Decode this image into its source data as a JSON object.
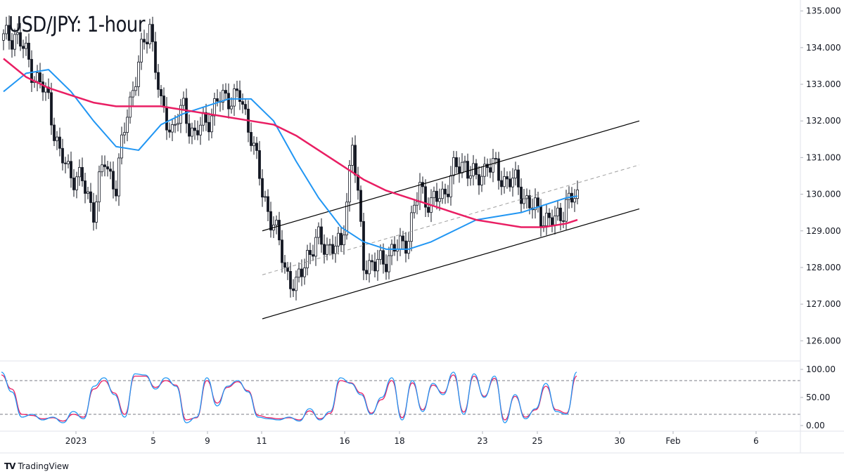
{
  "title": "USD/JPY: 1-hour",
  "branding": {
    "logo": "TV",
    "name": "TradingView"
  },
  "colors": {
    "candle": "#131722",
    "ma_fast": "#2196f3",
    "ma_slow": "#e91e63",
    "stoch_k": "#2196f3",
    "stoch_d": "#e91e63",
    "channel": "#000000",
    "midline": "#9e9e9e",
    "grid": "#e0e3eb"
  },
  "chart_data": {
    "type": "line",
    "title": "USD/JPY: 1-hour",
    "price_axis": {
      "ticks": [
        "135.000",
        "134.000",
        "133.000",
        "132.000",
        "131.000",
        "130.000",
        "129.000",
        "128.000",
        "127.000",
        "126.000"
      ],
      "ylim": [
        125.45,
        135.3
      ]
    },
    "time_axis": {
      "ticks": [
        "2023",
        "5",
        "9",
        "11",
        "16",
        "18",
        "23",
        "25",
        "30",
        "Feb",
        "6"
      ]
    },
    "price_series": {
      "name": "USD/JPY",
      "x": [
        0,
        4,
        8,
        12,
        16,
        20,
        24,
        28,
        32,
        36,
        40,
        44,
        48,
        52,
        56,
        60,
        64,
        68,
        72,
        76,
        80,
        84,
        88,
        92,
        96,
        100,
        104,
        108,
        112,
        116,
        120,
        124,
        128,
        132,
        136,
        140,
        144,
        148,
        152,
        156,
        160,
        164,
        168,
        172,
        176,
        180,
        184,
        188,
        192,
        196,
        200,
        204
      ],
      "close": [
        134.2,
        134.4,
        133.8,
        133.1,
        132.6,
        131.0,
        130.6,
        130.3,
        129.6,
        130.9,
        130.2,
        132.3,
        133.5,
        134.7,
        132.3,
        131.8,
        132.3,
        131.6,
        132.0,
        132.5,
        132.7,
        132.6,
        131.7,
        130.0,
        129.2,
        128.0,
        127.4,
        128.4,
        128.7,
        128.6,
        128.5,
        131.4,
        128.2,
        128.0,
        128.3,
        128.5,
        128.9,
        130.2,
        129.7,
        130.0,
        130.6,
        130.9,
        130.3,
        130.9,
        130.5,
        130.4,
        130.1,
        129.6,
        129.4,
        129.2,
        129.8,
        129.85
      ]
    },
    "ma_fast": {
      "x": [
        0,
        8,
        16,
        24,
        32,
        40,
        48,
        56,
        64,
        72,
        80,
        88,
        96,
        104,
        112,
        120,
        128,
        136,
        144,
        152,
        160,
        168,
        176,
        184,
        192,
        200,
        204
      ],
      "values": [
        132.8,
        133.3,
        133.4,
        132.8,
        132.0,
        131.3,
        131.2,
        131.9,
        132.2,
        132.4,
        132.6,
        132.6,
        132.0,
        130.9,
        129.9,
        129.1,
        128.7,
        128.5,
        128.5,
        128.7,
        129.0,
        129.3,
        129.4,
        129.5,
        129.7,
        129.9,
        129.95
      ]
    },
    "ma_slow": {
      "x": [
        0,
        8,
        16,
        24,
        32,
        40,
        48,
        56,
        64,
        72,
        80,
        88,
        96,
        104,
        112,
        120,
        128,
        136,
        144,
        152,
        160,
        168,
        176,
        184,
        192,
        200,
        204
      ],
      "values": [
        133.7,
        133.2,
        132.9,
        132.7,
        132.5,
        132.4,
        132.4,
        132.4,
        132.3,
        132.2,
        132.1,
        132.0,
        131.9,
        131.6,
        131.2,
        130.8,
        130.4,
        130.1,
        129.9,
        129.7,
        129.5,
        129.3,
        129.2,
        129.1,
        129.1,
        129.2,
        129.3
      ]
    },
    "channel": {
      "upper": {
        "x": [
          0,
          100
        ],
        "y": [
          129.0,
          132.0
        ]
      },
      "lower": {
        "x": [
          0,
          100
        ],
        "y": [
          126.6,
          129.6
        ]
      },
      "middle": {
        "x": [
          0,
          100
        ],
        "y": [
          127.8,
          130.8
        ]
      }
    },
    "stochastic": {
      "ticks": [
        "100.00",
        "50.00",
        "0.00"
      ],
      "ylim": [
        -10,
        115
      ],
      "levels": [
        80,
        20
      ],
      "k": [
        95,
        60,
        15,
        20,
        10,
        15,
        5,
        25,
        12,
        70,
        85,
        55,
        15,
        92,
        90,
        65,
        85,
        70,
        5,
        15,
        85,
        35,
        70,
        80,
        60,
        15,
        12,
        10,
        15,
        8,
        30,
        10,
        25,
        85,
        75,
        55,
        20,
        50,
        85,
        10,
        80,
        25,
        75,
        55,
        95,
        20,
        92,
        50,
        88,
        5,
        55,
        12,
        30,
        75,
        25,
        20,
        95
      ],
      "d": [
        90,
        65,
        20,
        18,
        12,
        14,
        8,
        20,
        15,
        65,
        80,
        58,
        20,
        88,
        88,
        68,
        80,
        72,
        10,
        14,
        80,
        40,
        68,
        78,
        62,
        18,
        14,
        12,
        14,
        10,
        26,
        12,
        22,
        80,
        76,
        58,
        22,
        46,
        80,
        14,
        76,
        28,
        72,
        58,
        90,
        24,
        88,
        52,
        84,
        10,
        52,
        15,
        28,
        70,
        28,
        22,
        88
      ]
    }
  }
}
